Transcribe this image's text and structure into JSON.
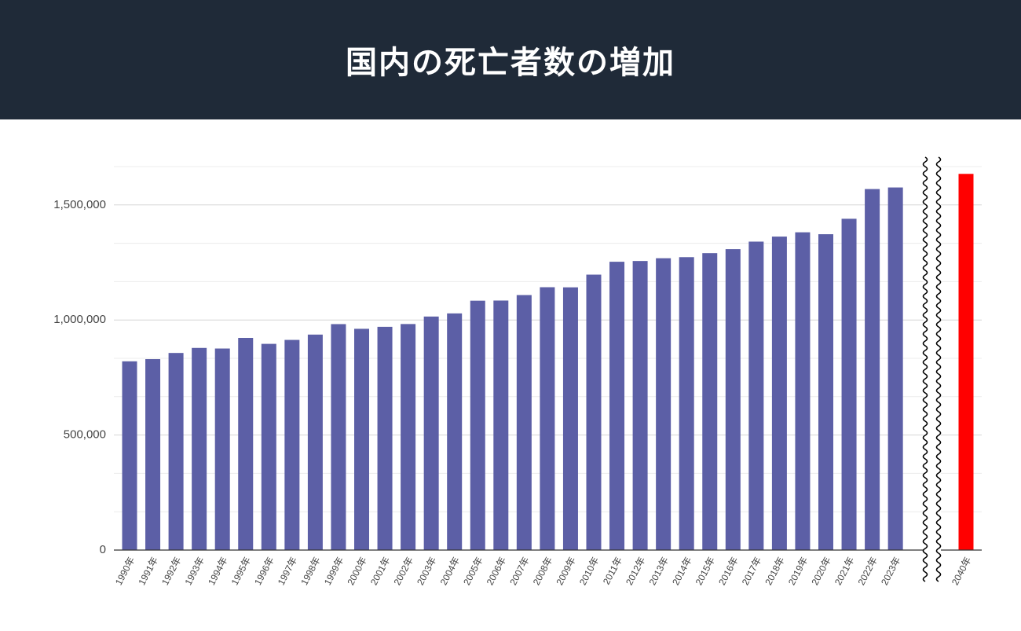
{
  "chart_data": {
    "type": "bar",
    "title": "国内の死亡者数の増加",
    "categories": [
      "1990年",
      "1991年",
      "1992年",
      "1993年",
      "1994年",
      "1995年",
      "1996年",
      "1997年",
      "1998年",
      "1999年",
      "2000年",
      "2001年",
      "2002年",
      "2003年",
      "2004年",
      "2005年",
      "2006年",
      "2007年",
      "2008年",
      "2009年",
      "2010年",
      "2011年",
      "2012年",
      "2013年",
      "2014年",
      "2015年",
      "2016年",
      "2017年",
      "2018年",
      "2019年",
      "2020年",
      "2021年",
      "2022年",
      "2023年",
      "2040年"
    ],
    "values": [
      820305,
      829797,
      856643,
      878532,
      875933,
      922139,
      896211,
      913402,
      936484,
      982031,
      961653,
      970331,
      982379,
      1014951,
      1028602,
      1083796,
      1084450,
      1108334,
      1142407,
      1141865,
      1197014,
      1253066,
      1256359,
      1268436,
      1273004,
      1290444,
      1307748,
      1340567,
      1362470,
      1381093,
      1372755,
      1439856,
      1569050,
      1575936,
      1635000
    ],
    "colors": [
      "#5c5fa6",
      "#5c5fa6",
      "#5c5fa6",
      "#5c5fa6",
      "#5c5fa6",
      "#5c5fa6",
      "#5c5fa6",
      "#5c5fa6",
      "#5c5fa6",
      "#5c5fa6",
      "#5c5fa6",
      "#5c5fa6",
      "#5c5fa6",
      "#5c5fa6",
      "#5c5fa6",
      "#5c5fa6",
      "#5c5fa6",
      "#5c5fa6",
      "#5c5fa6",
      "#5c5fa6",
      "#5c5fa6",
      "#5c5fa6",
      "#5c5fa6",
      "#5c5fa6",
      "#5c5fa6",
      "#5c5fa6",
      "#5c5fa6",
      "#5c5fa6",
      "#5c5fa6",
      "#5c5fa6",
      "#5c5fa6",
      "#5c5fa6",
      "#5c5fa6",
      "#5c5fa6",
      "#ff0000"
    ],
    "ylim": [
      0,
      1666667
    ],
    "yticks": [
      0,
      {
        "value": 500000,
        "label": "500,000"
      },
      {
        "value": 1000000,
        "label": "1,000,000"
      },
      {
        "value": 1500000,
        "label": "1,500,000"
      }
    ],
    "minor_grid": [
      166667,
      333333,
      666667,
      833333,
      1166667,
      1333333,
      1666667
    ],
    "grid": true,
    "axis_break": true
  }
}
